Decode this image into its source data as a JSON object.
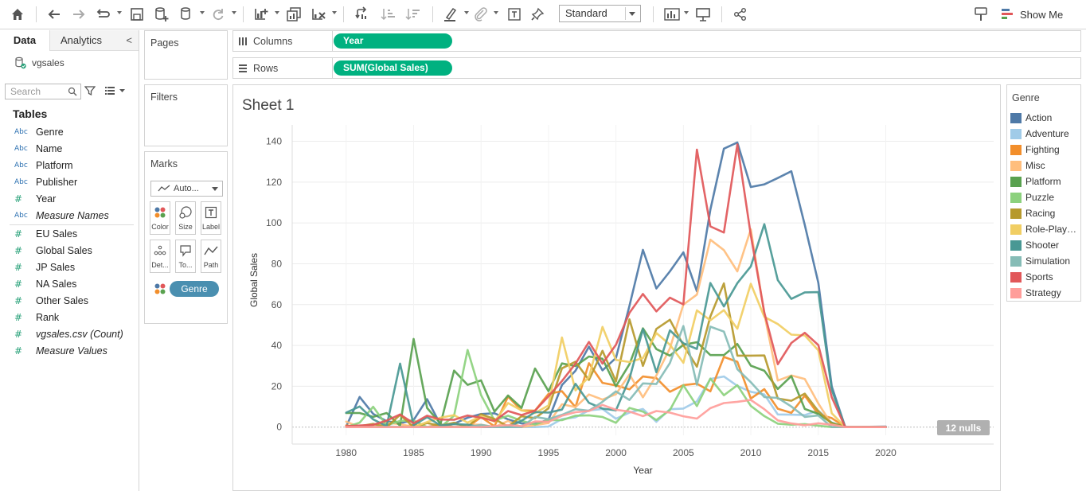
{
  "toolbar": {
    "view_mode": "Standard",
    "show_me_label": "Show Me",
    "icons": [
      "home-icon",
      "undo-icon",
      "redo-icon",
      "replay-icon",
      "save-icon",
      "new-datasource-icon",
      "datasource-icon",
      "refresh-icon",
      "new-worksheet-icon",
      "duplicate-icon",
      "clear-icon",
      "swap-icon",
      "sort-asc-icon",
      "sort-desc-icon",
      "highlight-icon",
      "group-icon",
      "label-icon",
      "pin-icon",
      "presentation-icon",
      "share-icon",
      "tooltip-icon"
    ]
  },
  "left_pane": {
    "tabs": [
      {
        "label": "Data"
      },
      {
        "label": "Analytics"
      }
    ],
    "datasource": "vgsales",
    "search_placeholder": "Search",
    "tables_label": "Tables",
    "dimensions": [
      {
        "type": "Abc",
        "name": "Genre"
      },
      {
        "type": "Abc",
        "name": "Name"
      },
      {
        "type": "Abc",
        "name": "Platform"
      },
      {
        "type": "Abc",
        "name": "Publisher"
      },
      {
        "type": "#",
        "name": "Year"
      },
      {
        "type": "Abc",
        "name": "Measure Names"
      }
    ],
    "measures": [
      {
        "type": "#",
        "name": "EU Sales"
      },
      {
        "type": "#",
        "name": "Global Sales"
      },
      {
        "type": "#",
        "name": "JP Sales"
      },
      {
        "type": "#",
        "name": "NA Sales"
      },
      {
        "type": "#",
        "name": "Other Sales"
      },
      {
        "type": "#",
        "name": "Rank"
      },
      {
        "type": "#",
        "name": "vgsales.csv (Count)"
      },
      {
        "type": "#",
        "name": "Measure Values"
      }
    ]
  },
  "cards": {
    "pages": "Pages",
    "filters": "Filters",
    "marks": "Marks",
    "mark_type": "Auto...",
    "mark_buttons": [
      {
        "label": "Color"
      },
      {
        "label": "Size"
      },
      {
        "label": "Label"
      },
      {
        "label": "Det..."
      },
      {
        "label": "To..."
      },
      {
        "label": "Path"
      }
    ],
    "color_pill": "Genre"
  },
  "shelves": {
    "columns_label": "Columns",
    "columns_pill": "Year",
    "rows_label": "Rows",
    "rows_pill": "SUM(Global Sales)"
  },
  "view": {
    "sheet_title": "Sheet 1",
    "nulls_badge": "12 nulls"
  },
  "legend": {
    "title": "Genre"
  },
  "chart_data": {
    "type": "line",
    "title": "Sheet 1",
    "xlabel": "Year",
    "ylabel": "Global Sales",
    "xlim": [
      1976,
      2028
    ],
    "ylim": [
      -4,
      148
    ],
    "xticks": [
      1980,
      1985,
      1990,
      1995,
      2000,
      2005,
      2010,
      2015,
      2020
    ],
    "yticks": [
      0,
      20,
      40,
      60,
      80,
      100,
      120,
      140
    ],
    "legend_position": "right",
    "grid": true,
    "x": [
      1980,
      1981,
      1982,
      1983,
      1984,
      1985,
      1986,
      1987,
      1988,
      1989,
      1990,
      1991,
      1992,
      1993,
      1994,
      1995,
      1996,
      1997,
      1998,
      1999,
      2000,
      2001,
      2002,
      2003,
      2004,
      2005,
      2006,
      2007,
      2008,
      2009,
      2010,
      2011,
      2012,
      2013,
      2014,
      2015,
      2016,
      2017,
      2020
    ],
    "series": [
      {
        "name": "Action",
        "color": "#4e79a7",
        "values": [
          0.3,
          14.8,
          6.5,
          2.9,
          1.9,
          3.5,
          13.7,
          1.1,
          1.7,
          4.6,
          6.4,
          6.8,
          3.8,
          1.8,
          1.6,
          3.6,
          20.6,
          27.6,
          39.4,
          27.8,
          33.9,
          59.4,
          86.8,
          67.9,
          76.3,
          85.6,
          66.5,
          106.5,
          136.4,
          139.4,
          117.6,
          118.9,
          122.0,
          125.3,
          99.0,
          70.7,
          19.9,
          0.0,
          0.3
        ]
      },
      {
        "name": "Adventure",
        "color": "#a0cbe8",
        "values": [
          0.0,
          0.0,
          0.0,
          0.4,
          0.0,
          0.0,
          0.0,
          1.5,
          0.0,
          0.0,
          0.0,
          0.0,
          0.0,
          0.0,
          0.0,
          0.3,
          4.0,
          4.8,
          8.2,
          8.9,
          4.1,
          7.1,
          8.9,
          2.6,
          8.8,
          9.1,
          12.6,
          23.6,
          24.8,
          20.2,
          17.3,
          16.0,
          6.2,
          6.1,
          5.9,
          8.1,
          2.2,
          0.0,
          0.0
        ]
      },
      {
        "name": "Fighting",
        "color": "#f28e2b",
        "values": [
          0.8,
          0.0,
          0.0,
          0.0,
          0.0,
          1.1,
          0.0,
          1.2,
          0.0,
          0.0,
          4.9,
          0.4,
          15.0,
          8.2,
          8.1,
          16.3,
          17.6,
          9.8,
          31.3,
          21.7,
          20.4,
          18.5,
          24.8,
          24.0,
          17.3,
          20.6,
          21.3,
          17.5,
          34.4,
          32.0,
          14.0,
          18.6,
          9.0,
          7.0,
          15.4,
          6.3,
          4.4,
          0.0,
          0.0
        ]
      },
      {
        "name": "Misc",
        "color": "#ffbe7d",
        "values": [
          2.7,
          0.0,
          0.9,
          2.1,
          1.5,
          0.0,
          0.0,
          0.0,
          0.0,
          1.3,
          1.2,
          0.0,
          3.0,
          0.0,
          1.0,
          2.0,
          11.2,
          9.8,
          16.0,
          13.5,
          16.1,
          25.8,
          14.6,
          25.3,
          38.6,
          60.0,
          64.9,
          91.8,
          86.7,
          76.3,
          96.9,
          55.4,
          22.8,
          25.3,
          23.6,
          11.6,
          1.3,
          0.0,
          0.0
        ]
      },
      {
        "name": "Platform",
        "color": "#59a14f",
        "values": [
          6.9,
          6.9,
          5.0,
          6.9,
          0.7,
          43.2,
          9.4,
          1.7,
          27.7,
          20.7,
          22.9,
          7.6,
          15.5,
          9.4,
          28.7,
          17.6,
          31.2,
          29.9,
          34.6,
          33.5,
          20.0,
          30.8,
          48.4,
          38.2,
          35.0,
          40.3,
          41.6,
          35.3,
          35.3,
          40.7,
          30.1,
          27.6,
          18.7,
          25.0,
          8.9,
          6.5,
          2.1,
          0.0,
          0.0
        ]
      },
      {
        "name": "Puzzle",
        "color": "#8cd17d",
        "values": [
          0.0,
          2.2,
          10.0,
          0.8,
          3.1,
          3.2,
          0.0,
          0.0,
          5.6,
          37.8,
          15.7,
          3.2,
          5.6,
          3.1,
          1.3,
          3.5,
          3.4,
          5.6,
          5.8,
          5.0,
          2.1,
          9.4,
          7.6,
          3.5,
          8.4,
          20.5,
          10.3,
          23.8,
          15.6,
          20.5,
          10.4,
          5.4,
          1.7,
          1.2,
          1.5,
          0.7,
          0.0,
          0.0,
          0.0
        ]
      },
      {
        "name": "Racing",
        "color": "#b6992d",
        "values": [
          0.0,
          0.5,
          1.6,
          0.0,
          6.0,
          0.0,
          2.0,
          0.7,
          2.1,
          0.0,
          6.3,
          4.0,
          0.3,
          5.3,
          4.4,
          9.2,
          28.8,
          32.0,
          23.1,
          37.4,
          22.4,
          52.8,
          30.0,
          48.1,
          52.6,
          40.1,
          29.6,
          54.2,
          70.4,
          35.0,
          35.0,
          35.1,
          14.0,
          12.9,
          16.4,
          7.8,
          1.7,
          0.0,
          0.0
        ]
      },
      {
        "name": "Role-Playing",
        "color": "#f1ce63",
        "values": [
          0.0,
          0.0,
          0.0,
          0.0,
          0.0,
          0.0,
          2.5,
          4.6,
          5.9,
          2.2,
          5.4,
          2.7,
          11.8,
          8.2,
          6.9,
          10.6,
          43.9,
          18.0,
          24.5,
          49.1,
          32.9,
          31.9,
          33.8,
          46.1,
          40.4,
          31.5,
          57.2,
          52.3,
          57.3,
          48.2,
          70.2,
          54.0,
          50.5,
          45.3,
          44.9,
          37.6,
          6.8,
          0.0,
          0.0
        ]
      },
      {
        "name": "Shooter",
        "color": "#499894",
        "values": [
          7.1,
          10.1,
          3.8,
          0.5,
          31.1,
          1.0,
          4.9,
          0.8,
          1.5,
          1.2,
          0.0,
          0.2,
          0.0,
          3.1,
          7.4,
          7.1,
          8.6,
          21.2,
          11.9,
          9.1,
          8.2,
          23.7,
          48.0,
          26.9,
          47.4,
          41.1,
          38.3,
          70.6,
          59.1,
          70.5,
          78.7,
          99.4,
          72.0,
          62.8,
          66.0,
          66.1,
          18.2,
          0.0,
          0.0
        ]
      },
      {
        "name": "Simulation",
        "color": "#86bcb6",
        "values": [
          0.0,
          0.4,
          0.0,
          0.0,
          0.0,
          0.0,
          0.0,
          0.0,
          0.0,
          0.0,
          1.1,
          0.0,
          0.0,
          0.0,
          5.0,
          3.9,
          6.0,
          8.8,
          8.0,
          12.4,
          17.5,
          13.3,
          21.4,
          21.1,
          31.4,
          49.5,
          20.7,
          49.2,
          46.8,
          28.4,
          22.0,
          14.7,
          14.3,
          10.1,
          5.0,
          5.7,
          0.0,
          0.0,
          0.0
        ]
      },
      {
        "name": "Sports",
        "color": "#e15759",
        "values": [
          0.5,
          0.8,
          1.1,
          3.2,
          6.2,
          1.9,
          5.6,
          3.7,
          3.6,
          5.7,
          4.6,
          3.0,
          7.9,
          5.9,
          8.1,
          15.1,
          22.6,
          31.1,
          41.7,
          31.1,
          40.3,
          56.0,
          65.2,
          56.7,
          63.4,
          60.1,
          135.9,
          98.3,
          95.3,
          138.5,
          94.0,
          56.1,
          30.8,
          41.2,
          46.2,
          40.2,
          14.6,
          0.0,
          0.0
        ]
      },
      {
        "name": "Strategy",
        "color": "#ff9d9a",
        "values": [
          0.0,
          0.0,
          0.0,
          0.0,
          0.0,
          0.0,
          0.0,
          0.0,
          0.0,
          0.0,
          0.0,
          0.5,
          1.0,
          0.5,
          2.8,
          2.6,
          5.6,
          7.3,
          7.9,
          10.9,
          8.5,
          7.6,
          5.4,
          7.9,
          7.1,
          5.3,
          4.2,
          9.3,
          11.8,
          12.4,
          13.3,
          8.8,
          3.3,
          1.8,
          0.9,
          1.9,
          1.2,
          0.0,
          0.0
        ]
      }
    ]
  }
}
